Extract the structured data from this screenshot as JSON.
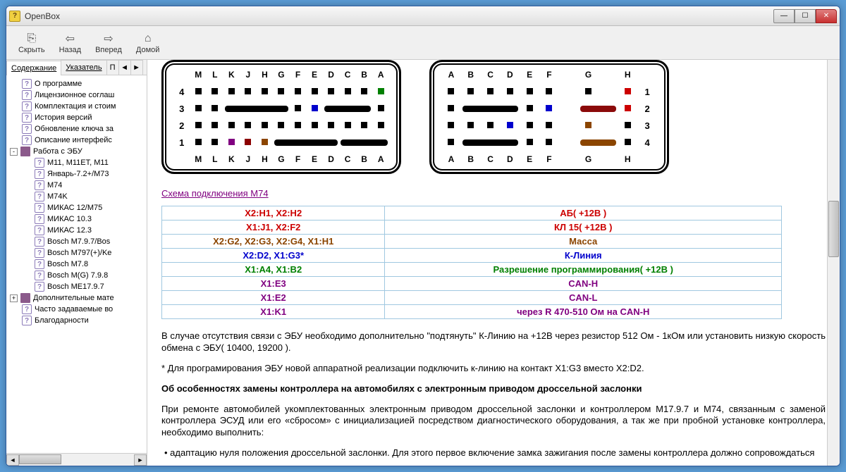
{
  "window": {
    "title": "OpenBox",
    "icon_char": "?"
  },
  "win_buttons": {
    "min": "—",
    "max": "☐",
    "close": "✕"
  },
  "toolbar": [
    {
      "icon": "⎘",
      "label": "Скрыть"
    },
    {
      "icon": "⇦",
      "label": "Назад"
    },
    {
      "icon": "⇨",
      "label": "Вперед"
    },
    {
      "icon": "⌂",
      "label": "Домой"
    }
  ],
  "tabs": {
    "t0": "Содержание",
    "t1": "Указатель",
    "t2": "П",
    "t3": "◄",
    "t4": "►"
  },
  "tree": [
    {
      "indent": 0,
      "icon": "q",
      "label": "О программе"
    },
    {
      "indent": 0,
      "icon": "q",
      "label": "Лицензионное соглаш"
    },
    {
      "indent": 0,
      "icon": "q",
      "label": "Комплектация и стоим"
    },
    {
      "indent": 0,
      "icon": "q",
      "label": "История версий"
    },
    {
      "indent": 0,
      "icon": "q",
      "label": "Обновление ключа за"
    },
    {
      "indent": 0,
      "icon": "q",
      "label": "Описание интерфейс"
    },
    {
      "indent": 0,
      "icon": "b",
      "label": "Работа с ЭБУ",
      "expand": "-"
    },
    {
      "indent": 1,
      "icon": "q",
      "label": "M11, M11ET, M11"
    },
    {
      "indent": 1,
      "icon": "q",
      "label": "Январь-7.2+/М73"
    },
    {
      "indent": 1,
      "icon": "q",
      "label": "M74"
    },
    {
      "indent": 1,
      "icon": "q",
      "label": "M74K"
    },
    {
      "indent": 1,
      "icon": "q",
      "label": "МИКАС 12/M75"
    },
    {
      "indent": 1,
      "icon": "q",
      "label": "МИКАС 10.3"
    },
    {
      "indent": 1,
      "icon": "q",
      "label": "МИКАС 12.3"
    },
    {
      "indent": 1,
      "icon": "q",
      "label": "Bosch M7.9.7/Bos"
    },
    {
      "indent": 1,
      "icon": "q",
      "label": "Bosch M797(+)/Ke"
    },
    {
      "indent": 1,
      "icon": "q",
      "label": "Bosch M7.8"
    },
    {
      "indent": 1,
      "icon": "q",
      "label": "Bosch M(G) 7.9.8"
    },
    {
      "indent": 1,
      "icon": "q",
      "label": "Bosch ME17.9.7"
    },
    {
      "indent": 0,
      "icon": "b",
      "label": "Дополнительные мате",
      "expand": "+"
    },
    {
      "indent": 0,
      "icon": "q",
      "label": "Часто задаваемые во"
    },
    {
      "indent": 0,
      "icon": "q",
      "label": "Благодарности"
    }
  ],
  "colors": {
    "red": "#cc0000",
    "blue": "#0000cc",
    "green": "#008000",
    "purple": "#800080",
    "darkred": "#8b0000",
    "brown": "#8b4500",
    "black": "#000000"
  },
  "conn_left": {
    "top_labels": [
      "M",
      "L",
      "K",
      "J",
      "H",
      "G",
      "F",
      "E",
      "D",
      "C",
      "B",
      "A"
    ],
    "bot_labels": [
      "M",
      "L",
      "K",
      "J",
      "H",
      "G",
      "F",
      "E",
      "D",
      "C",
      "B",
      "A"
    ],
    "rows": [
      {
        "n": "4",
        "cells": [
          {
            "t": "p",
            "c": "#000"
          },
          {
            "t": "p",
            "c": "#000"
          },
          {
            "t": "p",
            "c": "#000"
          },
          {
            "t": "p",
            "c": "#000"
          },
          {
            "t": "p",
            "c": "#000"
          },
          {
            "t": "p",
            "c": "#000"
          },
          {
            "t": "p",
            "c": "#000"
          },
          {
            "t": "p",
            "c": "#000"
          },
          {
            "t": "p",
            "c": "#000"
          },
          {
            "t": "p",
            "c": "#000"
          },
          {
            "t": "p",
            "c": "#000"
          },
          {
            "t": "p",
            "c": "#008000"
          }
        ]
      },
      {
        "n": "3",
        "cells": [
          {
            "t": "p",
            "c": "#000"
          },
          {
            "t": "p",
            "c": "#000"
          },
          {
            "t": "tr",
            "span": 4
          },
          {
            "t": "p",
            "c": "#000"
          },
          {
            "t": "p",
            "c": "#0000cc"
          },
          {
            "t": "tr",
            "span": 3
          },
          {
            "t": "p",
            "c": "#000"
          }
        ]
      },
      {
        "n": "2",
        "cells": [
          {
            "t": "p",
            "c": "#000"
          },
          {
            "t": "p",
            "c": "#000"
          },
          {
            "t": "p",
            "c": "#000"
          },
          {
            "t": "p",
            "c": "#000"
          },
          {
            "t": "p",
            "c": "#000"
          },
          {
            "t": "p",
            "c": "#000"
          },
          {
            "t": "p",
            "c": "#000"
          },
          {
            "t": "p",
            "c": "#000"
          },
          {
            "t": "p",
            "c": "#000"
          },
          {
            "t": "p",
            "c": "#000"
          },
          {
            "t": "p",
            "c": "#000"
          },
          {
            "t": "p",
            "c": "#000"
          }
        ]
      },
      {
        "n": "1",
        "cells": [
          {
            "t": "p",
            "c": "#000"
          },
          {
            "t": "p",
            "c": "#000"
          },
          {
            "t": "p",
            "c": "#800080"
          },
          {
            "t": "p",
            "c": "#8b0000"
          },
          {
            "t": "p",
            "c": "#8b4500"
          },
          {
            "t": "tr",
            "span": 4
          },
          {
            "t": "tr",
            "span": 3
          }
        ]
      }
    ]
  },
  "conn_right": {
    "top_labels": [
      "A",
      "B",
      "C",
      "D",
      "E",
      "F",
      "",
      "G",
      "",
      "H"
    ],
    "bot_labels": [
      "A",
      "B",
      "C",
      "D",
      "E",
      "F",
      "",
      "G",
      "",
      "H"
    ],
    "rows": [
      {
        "n": "1",
        "cells": [
          {
            "t": "p",
            "c": "#000"
          },
          {
            "t": "p",
            "c": "#000"
          },
          {
            "t": "p",
            "c": "#000"
          },
          {
            "t": "p",
            "c": "#000"
          },
          {
            "t": "p",
            "c": "#000"
          },
          {
            "t": "p",
            "c": "#000"
          },
          {
            "t": "e"
          },
          {
            "t": "p",
            "c": "#000"
          },
          {
            "t": "e"
          },
          {
            "t": "p",
            "c": "#cc0000"
          }
        ]
      },
      {
        "n": "2",
        "cells": [
          {
            "t": "p",
            "c": "#000"
          },
          {
            "t": "tr",
            "span": 3
          },
          {
            "t": "p",
            "c": "#000"
          },
          {
            "t": "p",
            "c": "#0000cc"
          },
          {
            "t": "e"
          },
          {
            "t": "tr",
            "span": 2,
            "c": "#8b0a0a"
          },
          {
            "t": "p",
            "c": "#cc0000"
          }
        ]
      },
      {
        "n": "3",
        "cells": [
          {
            "t": "p",
            "c": "#000"
          },
          {
            "t": "p",
            "c": "#000"
          },
          {
            "t": "p",
            "c": "#000"
          },
          {
            "t": "p",
            "c": "#0000cc"
          },
          {
            "t": "p",
            "c": "#000"
          },
          {
            "t": "p",
            "c": "#000"
          },
          {
            "t": "e"
          },
          {
            "t": "p",
            "c": "#8b4500"
          },
          {
            "t": "e"
          },
          {
            "t": "p",
            "c": "#000"
          }
        ]
      },
      {
        "n": "4",
        "cells": [
          {
            "t": "p",
            "c": "#000"
          },
          {
            "t": "tr",
            "span": 3
          },
          {
            "t": "p",
            "c": "#000"
          },
          {
            "t": "p",
            "c": "#000"
          },
          {
            "t": "e"
          },
          {
            "t": "tr",
            "span": 2,
            "c": "#8b4500"
          },
          {
            "t": "p",
            "c": "#000"
          }
        ]
      }
    ]
  },
  "link_title": "Схема подключения M74",
  "table_rows": [
    {
      "c1": "X2:H1, X2:H2",
      "c2": "АБ( +12В )",
      "color": "#cc0000"
    },
    {
      "c1": "X1:J1, X2:F2",
      "c2": "КЛ 15( +12B )",
      "color": "#cc0000"
    },
    {
      "c1": "X2:G2, X2:G3, X2:G4, X1:H1",
      "c2": "Масса",
      "color": "#8b4500"
    },
    {
      "c1": "X2:D2, X1:G3*",
      "c2": "К-Линия",
      "color": "#0000cc"
    },
    {
      "c1": "X1:A4, X1:B2",
      "c2": "Разрешение программирования( +12B )",
      "color": "#008000"
    },
    {
      "c1": "X1:E3",
      "c2": "CAN-H",
      "color": "#800080"
    },
    {
      "c1": "X1:E2",
      "c2": "CAN-L",
      "color": "#800080"
    },
    {
      "c1": "X1:K1",
      "c2": "через R 470-510 Ом на CAN-H",
      "color": "#800080"
    }
  ],
  "paragraphs": {
    "p1": "В случае отсутствия связи с ЭБУ необходимо дополнительно \"подтянуть\" К-Линию на +12В через резистор 512 Ом - 1кОм или установить низкую скорость обмена с ЭБУ( 10400, 19200 ).",
    "p2": "* Для програмирования ЭБУ новой аппаратной реализации подключить к-линию на контакт X1:G3 вместо X2:D2.",
    "p3": "Об особенностях замены контроллера на автомобилях с электронным приводом дроссельной заслонки",
    "p4": "При ремонте автомобилей укомплектованных электронным приводом дроссельной заслонки и контроллером М17.9.7 и М74, связанным с заменой контроллера ЭСУД или его «сбросом» с инициализацией посредством диагностического оборудования, а так же при пробной установке контроллера, необходимо выполнить:",
    "b1": "адаптацию нуля положения дроссельной заслонки. Для этого первое включение замка зажигания после замены контроллера должно сопровождаться"
  }
}
